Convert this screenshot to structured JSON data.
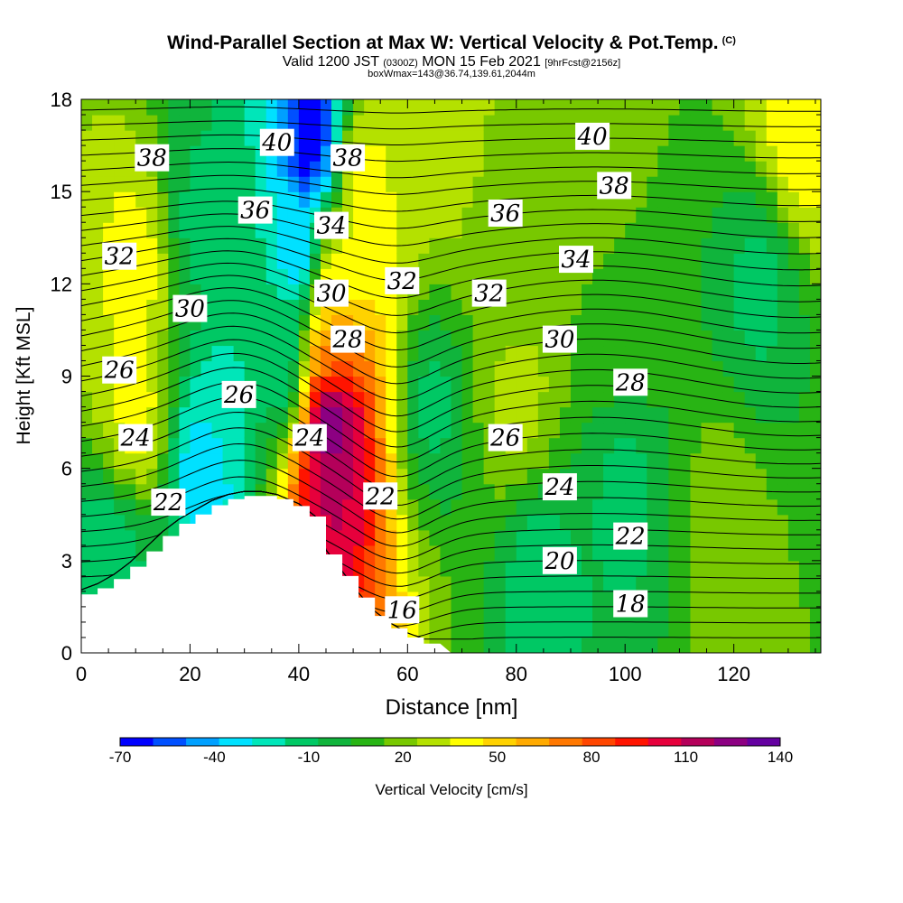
{
  "title": {
    "main": "Wind-Parallel Section at Max W: Vertical Velocity & Pot.Temp.",
    "copyright": "(C)",
    "valid_prefix": "Valid 1200 JST",
    "valid_z": "(0300Z)",
    "valid_date": "MON 15 Feb 2021",
    "forecast": "[9hrFcst@2156z]",
    "box_info": "boxWmax=143@36.74,139.61,2044m"
  },
  "chart_data": {
    "type": "heatmap",
    "xlabel": "Distance [nm]",
    "ylabel": "Height [Kft MSL]",
    "xlim": [
      0,
      136
    ],
    "ylim": [
      0,
      18
    ],
    "x_ticks": [
      0,
      20,
      40,
      60,
      80,
      100,
      120
    ],
    "y_ticks": [
      0,
      3,
      6,
      9,
      12,
      15,
      18
    ],
    "colorbar": {
      "label": "Vertical Velocity [cm/s]",
      "tick_labels": [
        -70,
        -40,
        -10,
        20,
        50,
        80,
        110,
        140
      ],
      "colors": [
        "#0000ff",
        "#0050ff",
        "#00a0ff",
        "#00e1ff",
        "#00e6b9",
        "#00c864",
        "#10b43c",
        "#28b414",
        "#78c800",
        "#b4e100",
        "#ffff00",
        "#ffd200",
        "#ffaa00",
        "#ff7800",
        "#ff4600",
        "#ff1400",
        "#e6003c",
        "#b4005a",
        "#8c0082",
        "#6400a0"
      ]
    },
    "terrain_profile": [
      [
        0,
        1.9
      ],
      [
        3,
        2.1
      ],
      [
        6,
        2.4
      ],
      [
        9,
        2.8
      ],
      [
        12,
        3.3
      ],
      [
        15,
        3.8
      ],
      [
        18,
        4.2
      ],
      [
        21,
        4.5
      ],
      [
        24,
        4.8
      ],
      [
        27,
        5.0
      ],
      [
        30,
        5.1
      ],
      [
        33,
        5.1
      ],
      [
        36,
        5.0
      ],
      [
        40,
        4.7
      ],
      [
        43,
        4.3
      ],
      [
        45,
        3.2
      ],
      [
        48,
        2.5
      ],
      [
        51,
        1.8
      ],
      [
        54,
        1.2
      ],
      [
        57,
        0.8
      ],
      [
        60,
        0.5
      ],
      [
        63,
        0.3
      ],
      [
        65,
        0.3
      ]
    ],
    "velocity_features": [
      {
        "x": 42,
        "y": 16.5,
        "value": -70
      },
      {
        "x": 40,
        "y": 13.0,
        "value": -40
      },
      {
        "x": 37,
        "y": 9.5,
        "value": -20
      },
      {
        "x": 23,
        "y": 6.0,
        "value": -40
      },
      {
        "x": 27,
        "y": 8.0,
        "value": -20
      },
      {
        "x": 46,
        "y": 7.5,
        "value": 140
      },
      {
        "x": 46,
        "y": 5.0,
        "value": 110
      },
      {
        "x": 46,
        "y": 10.0,
        "value": 70
      },
      {
        "x": 46,
        "y": 12.0,
        "value": 40
      },
      {
        "x": 10,
        "y": 8.0,
        "value": 40
      },
      {
        "x": 10,
        "y": 12.5,
        "value": 40
      },
      {
        "x": 52,
        "y": 15.0,
        "value": 40
      },
      {
        "x": 67,
        "y": 16.5,
        "value": 30
      },
      {
        "x": 80,
        "y": 8.5,
        "value": 30
      },
      {
        "x": 95,
        "y": 16.0,
        "value": 20
      },
      {
        "x": 78,
        "y": 12.0,
        "value": 15
      },
      {
        "x": 100,
        "y": 11.0,
        "value": 10
      },
      {
        "x": 65,
        "y": 8.0,
        "value": -10
      },
      {
        "x": 100,
        "y": 5.0,
        "value": -10
      },
      {
        "x": 84,
        "y": 2.0,
        "value": -15
      },
      {
        "x": 118,
        "y": 4.0,
        "value": 20
      },
      {
        "x": 125,
        "y": 12.0,
        "value": -10
      },
      {
        "x": 5,
        "y": 3.0,
        "value": -15
      },
      {
        "x": 22,
        "y": 14.0,
        "value": -10
      },
      {
        "x": 132,
        "y": 17.0,
        "value": 45
      }
    ],
    "isentrope_labels": [
      {
        "text": "40",
        "x": 36,
        "y": 16.6
      },
      {
        "text": "38",
        "x": 13,
        "y": 16.1
      },
      {
        "text": "38",
        "x": 49,
        "y": 16.1
      },
      {
        "text": "40",
        "x": 94,
        "y": 16.8
      },
      {
        "text": "38",
        "x": 98,
        "y": 15.2
      },
      {
        "text": "36",
        "x": 32,
        "y": 14.4
      },
      {
        "text": "34",
        "x": 46,
        "y": 13.9
      },
      {
        "text": "36",
        "x": 78,
        "y": 14.3
      },
      {
        "text": "34",
        "x": 91,
        "y": 12.8
      },
      {
        "text": "32",
        "x": 7,
        "y": 12.9
      },
      {
        "text": "32",
        "x": 59,
        "y": 12.1
      },
      {
        "text": "32",
        "x": 75,
        "y": 11.7
      },
      {
        "text": "30",
        "x": 20,
        "y": 11.2
      },
      {
        "text": "30",
        "x": 46,
        "y": 11.7
      },
      {
        "text": "30",
        "x": 88,
        "y": 10.2
      },
      {
        "text": "28",
        "x": 49,
        "y": 10.2
      },
      {
        "text": "28",
        "x": 101,
        "y": 8.8
      },
      {
        "text": "26",
        "x": 7,
        "y": 9.2
      },
      {
        "text": "26",
        "x": 29,
        "y": 8.4
      },
      {
        "text": "26",
        "x": 78,
        "y": 7.0
      },
      {
        "text": "24",
        "x": 10,
        "y": 7.0
      },
      {
        "text": "24",
        "x": 42,
        "y": 7.0
      },
      {
        "text": "24",
        "x": 88,
        "y": 5.4
      },
      {
        "text": "22",
        "x": 16,
        "y": 4.9
      },
      {
        "text": "22",
        "x": 55,
        "y": 5.1
      },
      {
        "text": "22",
        "x": 101,
        "y": 3.8
      },
      {
        "text": "20",
        "x": 88,
        "y": 3.0
      },
      {
        "text": "18",
        "x": 101,
        "y": 1.6
      },
      {
        "text": "16",
        "x": 59,
        "y": 1.4
      }
    ]
  }
}
